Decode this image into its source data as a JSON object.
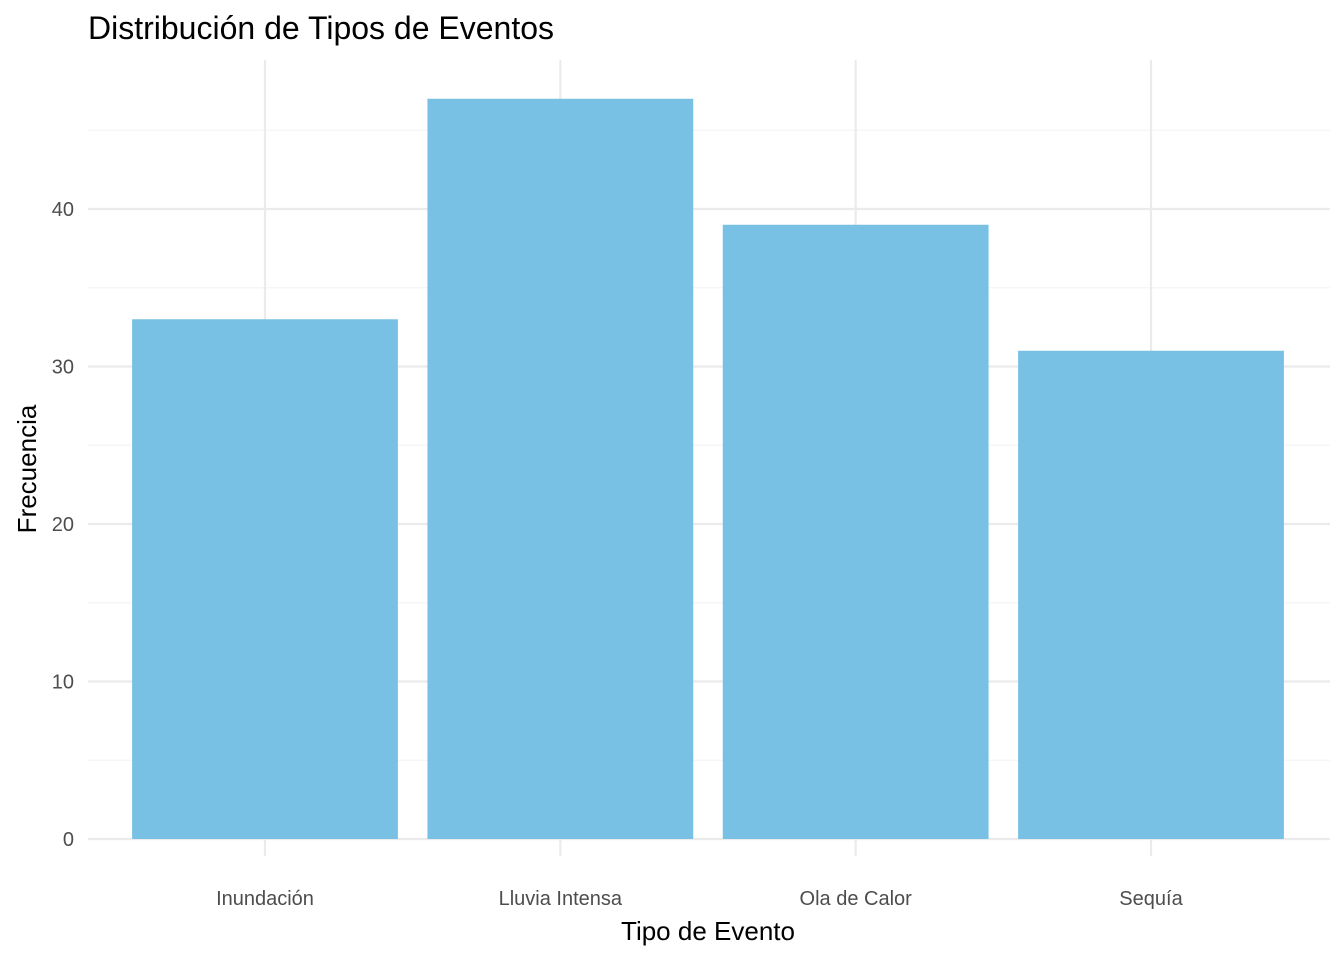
{
  "chart_data": {
    "type": "bar",
    "title": "Distribución de Tipos de Eventos",
    "xlabel": "Tipo de Evento",
    "ylabel": "Frecuencia",
    "categories": [
      "Inundación",
      "Lluvia Intensa",
      "Ola de Calor",
      "Sequía"
    ],
    "values": [
      33,
      47,
      39,
      31
    ],
    "ylim": [
      0,
      49.5
    ],
    "yticks": [
      0,
      10,
      20,
      30,
      40
    ],
    "ytick_labels": [
      "0",
      "10",
      "20",
      "30",
      "40"
    ],
    "grid": true,
    "legend": "none",
    "colors": {
      "bar": "#78c1e4",
      "grid_major": "#ebebeb",
      "grid_minor": "#f4f4f4",
      "tick_text": "#4d4d4d"
    }
  }
}
